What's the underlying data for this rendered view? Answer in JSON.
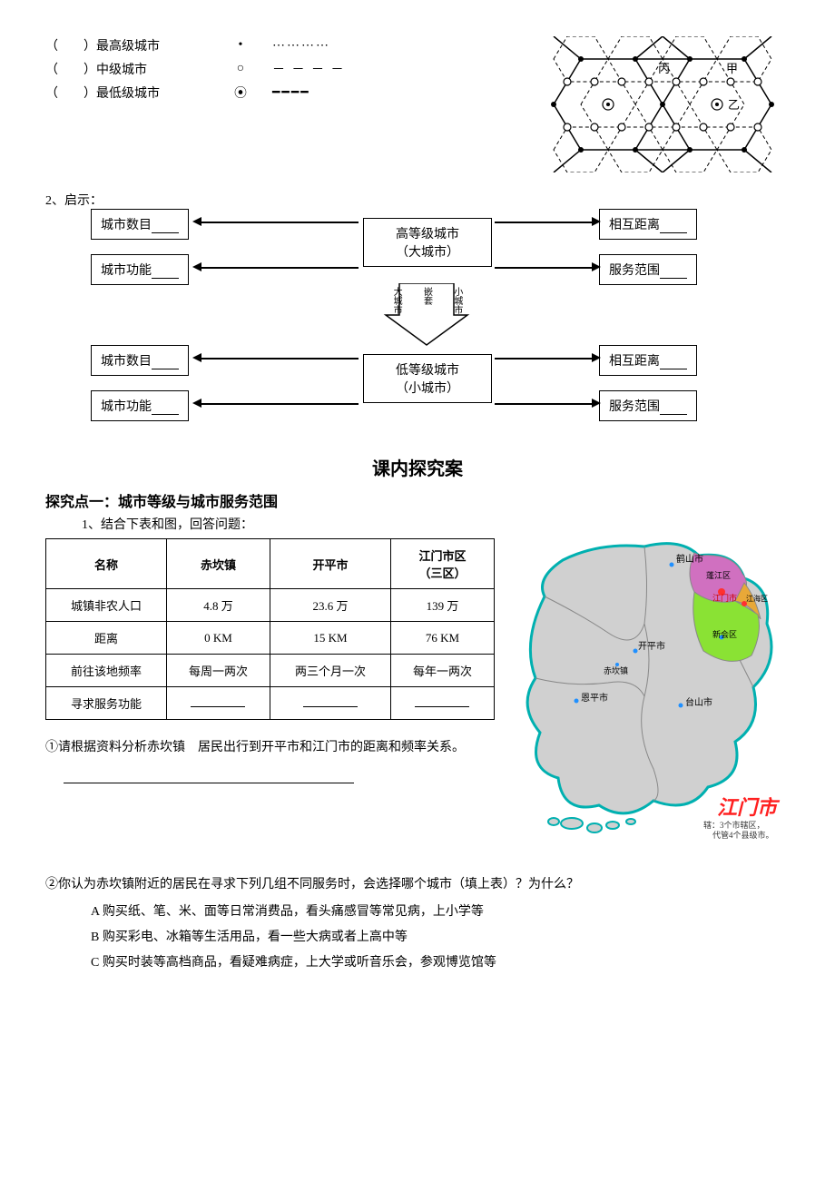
{
  "legend": {
    "rows": [
      {
        "paren": "（　　）",
        "label": "最高级城市",
        "symbol": "•",
        "line": "⋯⋯⋯⋯"
      },
      {
        "paren": "（　　）",
        "label": "中级城市",
        "symbol": "○",
        "line": "－ － － －"
      },
      {
        "paren": "（　　）",
        "label": "最低级城市",
        "symbol": "⦿",
        "line": "━━━━"
      }
    ],
    "hex_labels": {
      "a": "丙",
      "b": "甲",
      "c": "乙"
    }
  },
  "section2_label": "2、启示：",
  "flowchart": {
    "top_center": {
      "l1": "高等级城市",
      "l2": "（大城市）"
    },
    "bot_center": {
      "l1": "低等级城市",
      "l2": "（小城市）"
    },
    "top_left_1": "城市数目",
    "top_left_2": "城市功能",
    "top_right_1": "相互距离",
    "top_right_2": "服务范围",
    "bot_left_1": "城市数目",
    "bot_left_2": "城市功能",
    "bot_right_1": "相互距离",
    "bot_right_2": "服务范围",
    "mid_col": {
      "l": "大城市",
      "m": "嵌套",
      "r": "小城市"
    }
  },
  "title2": "课内探究案",
  "topic1": "探究点一：城市等级与城市服务范围",
  "q1_intro": "1、结合下表和图，回答问题：",
  "table": {
    "columns": [
      "名称",
      "赤坎镇",
      "开平市",
      "江门市区\n（三区）"
    ],
    "rows": [
      [
        "城镇非农人口",
        "4.8 万",
        "23.6 万",
        "139 万"
      ],
      [
        "距离",
        "0 KM",
        "15 KM",
        "76 KM"
      ],
      [
        "前往该地频率",
        "每周一两次",
        "两三个月一次",
        "每年一两次"
      ],
      [
        "寻求服务功能",
        "",
        "",
        ""
      ]
    ]
  },
  "q1_text": "①请根据资料分析赤坎镇　居民出行到开平市和江门市的距离和频率关系。",
  "q2_text": "②你认为赤坎镇附近的居民在寻求下列几组不同服务时，会选择哪个城市（填上表）？为什么？",
  "opts": {
    "A": "A 购买纸、笔、米、面等日常消费品，看头痛感冒等常见病，上小学等",
    "B": "B 购买彩电、冰箱等生活用品，看一些大病或者上高中等",
    "C": "C 购买时装等高档商品，看疑难病症，上大学或听音乐会，参观博览馆等"
  },
  "map": {
    "title": "江门市",
    "legend": "辖：3个市辖区，\n代管4个县级市。",
    "labels": {
      "heshan": "鹤山市",
      "pengjiang": "蓬江区",
      "jiangmen": "江门市",
      "jianghai": "江海区",
      "xinhui": "新会区",
      "kaiping": "开平市",
      "chikan": "赤坎镇",
      "enping": "恩平市",
      "taishan": "台山市"
    },
    "colors": {
      "bg": "#ffffff",
      "outline": "#00b0b0",
      "fill_default": "#d0d0d0",
      "fill_xinhui": "#8ae234",
      "fill_pengjiang": "#d070c0",
      "fill_jianghai": "#e8a838",
      "fill_heshan": "#b8b8b8",
      "city_dot": "#2090ff",
      "center_dot": "#ff3030",
      "title_color": "#ff2020"
    }
  }
}
